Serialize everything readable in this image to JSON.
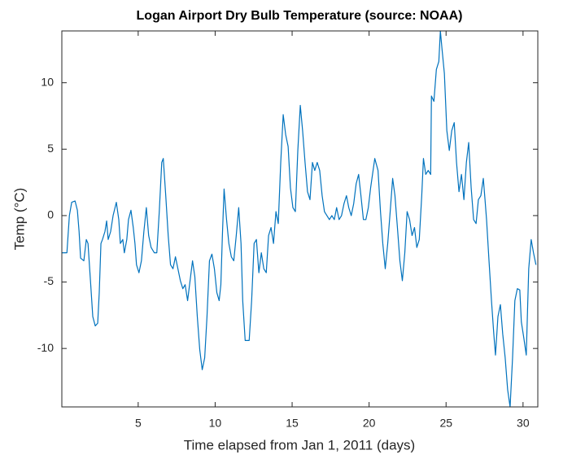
{
  "chart_data": {
    "type": "line",
    "title": "Logan Airport Dry Bulb Temperature (source: NOAA)",
    "xlabel": "Time elapsed from Jan 1, 2011 (days)",
    "ylabel": "Temp (°C)",
    "xlim": [
      0.04,
      30.96
    ],
    "ylim": [
      -14.4,
      13.9
    ],
    "xticks": [
      5,
      10,
      15,
      20,
      25,
      30
    ],
    "yticks": [
      -10,
      -5,
      0,
      5,
      10
    ],
    "grid": false,
    "series": [
      {
        "color": "#0072bd",
        "x": [
          0.05,
          0.37,
          0.53,
          0.68,
          0.9,
          1.05,
          1.16,
          1.26,
          1.47,
          1.63,
          1.74,
          1.9,
          2.05,
          2.21,
          2.37,
          2.47,
          2.58,
          2.68,
          2.84,
          2.95,
          3.05,
          3.21,
          3.37,
          3.58,
          3.74,
          3.84,
          4.0,
          4.1,
          4.26,
          4.37,
          4.53,
          4.68,
          4.79,
          4.89,
          5.05,
          5.21,
          5.37,
          5.53,
          5.68,
          5.84,
          6.05,
          6.21,
          6.37,
          6.53,
          6.63,
          6.79,
          6.95,
          7.1,
          7.26,
          7.42,
          7.58,
          7.74,
          7.9,
          8.05,
          8.21,
          8.37,
          8.53,
          8.68,
          8.84,
          9.0,
          9.16,
          9.32,
          9.47,
          9.63,
          9.79,
          9.95,
          10.11,
          10.26,
          10.37,
          10.47,
          10.58,
          10.74,
          10.89,
          11.05,
          11.21,
          11.37,
          11.53,
          11.68,
          11.79,
          11.95,
          12.21,
          12.37,
          12.53,
          12.68,
          12.84,
          13.0,
          13.16,
          13.32,
          13.47,
          13.63,
          13.79,
          13.95,
          14.1,
          14.26,
          14.42,
          14.58,
          14.74,
          14.89,
          15.05,
          15.21,
          15.37,
          15.53,
          15.68,
          15.84,
          16.0,
          16.16,
          16.32,
          16.47,
          16.63,
          16.79,
          16.95,
          17.1,
          17.26,
          17.42,
          17.58,
          17.74,
          17.89,
          18.05,
          18.21,
          18.37,
          18.53,
          18.68,
          18.84,
          19.0,
          19.16,
          19.32,
          19.47,
          19.63,
          19.79,
          19.95,
          20.1,
          20.37,
          20.58,
          20.74,
          20.89,
          21.05,
          21.21,
          21.37,
          21.53,
          21.68,
          21.84,
          22.0,
          22.16,
          22.32,
          22.47,
          22.63,
          22.79,
          22.95,
          23.1,
          23.26,
          23.42,
          23.53,
          23.68,
          23.84,
          24.0,
          24.05,
          24.21,
          24.37,
          24.53,
          24.63,
          24.74,
          24.89,
          25.05,
          25.21,
          25.37,
          25.53,
          25.68,
          25.84,
          26.0,
          26.16,
          26.32,
          26.47,
          26.63,
          26.79,
          26.95,
          27.1,
          27.26,
          27.42,
          27.53,
          27.63,
          27.79,
          27.95,
          28.1,
          28.21,
          28.37,
          28.53,
          28.68,
          28.84,
          29.0,
          29.16,
          29.32,
          29.47,
          29.63,
          29.79,
          29.89,
          30.05,
          30.21,
          30.37,
          30.53,
          30.68,
          30.84
        ],
        "values": [
          -2.8,
          -2.8,
          0,
          1.0,
          1.1,
          0.4,
          -1.2,
          -3.2,
          -3.4,
          -1.8,
          -2.1,
          -4.9,
          -7.6,
          -8.3,
          -8.1,
          -5.8,
          -2.1,
          -1.8,
          -1.2,
          -0.4,
          -1.8,
          -1.2,
          0,
          1.0,
          -0.3,
          -2.1,
          -1.8,
          -2.8,
          -1.8,
          -0.3,
          0.4,
          -0.9,
          -2.1,
          -3.7,
          -4.3,
          -3.4,
          -1.2,
          0.6,
          -1.5,
          -2.4,
          -2.8,
          -2.8,
          0.3,
          4.0,
          4.3,
          1.5,
          -1.5,
          -3.7,
          -4.0,
          -3.1,
          -4.0,
          -4.9,
          -5.5,
          -5.2,
          -6.4,
          -4.9,
          -3.4,
          -4.6,
          -7.6,
          -10.1,
          -11.6,
          -10.7,
          -7.6,
          -3.4,
          -2.9,
          -4.0,
          -5.8,
          -6.4,
          -5.2,
          -1.5,
          2.0,
          -0.3,
          -2.1,
          -3.1,
          -3.4,
          -1.5,
          0.6,
          -2.1,
          -6.4,
          -9.4,
          -9.4,
          -6.4,
          -2.1,
          -1.8,
          -4.3,
          -2.8,
          -4.0,
          -4.3,
          -1.5,
          -0.9,
          -2.1,
          0.3,
          -0.6,
          4.0,
          7.6,
          6.1,
          5.2,
          2.1,
          0.6,
          0.3,
          4.9,
          8.3,
          6.4,
          4.0,
          1.8,
          1.2,
          4.0,
          3.4,
          4.0,
          3.4,
          1.5,
          0.3,
          0,
          -0.3,
          0,
          -0.3,
          0.6,
          -0.3,
          0,
          0.9,
          1.5,
          0.6,
          0,
          0.9,
          2.4,
          3.1,
          1.5,
          -0.3,
          -0.3,
          0.6,
          2.1,
          4.3,
          3.4,
          0.3,
          -2.1,
          -4.0,
          -2.1,
          0.3,
          2.8,
          1.5,
          -0.9,
          -3.4,
          -4.9,
          -2.8,
          0.3,
          -0.3,
          -1.5,
          -0.9,
          -2.4,
          -1.8,
          1.5,
          4.3,
          3.1,
          3.4,
          3.1,
          9.0,
          8.6,
          11.0,
          11.6,
          13.9,
          12.5,
          10.7,
          6.4,
          4.9,
          6.4,
          7.0,
          4.0,
          1.8,
          3.1,
          1.2,
          4.0,
          5.5,
          2.1,
          -0.3,
          -0.6,
          1.2,
          1.5,
          2.8,
          1.2,
          -0.3,
          -3.4,
          -6.4,
          -8.9,
          -10.5,
          -7.6,
          -6.7,
          -8.9,
          -10.7,
          -13.1,
          -14.4,
          -10.7,
          -6.4,
          -5.5,
          -5.6,
          -8.0,
          -9.2,
          -10.5,
          -4.0,
          -1.8,
          -2.8,
          -3.7
        ]
      }
    ]
  }
}
